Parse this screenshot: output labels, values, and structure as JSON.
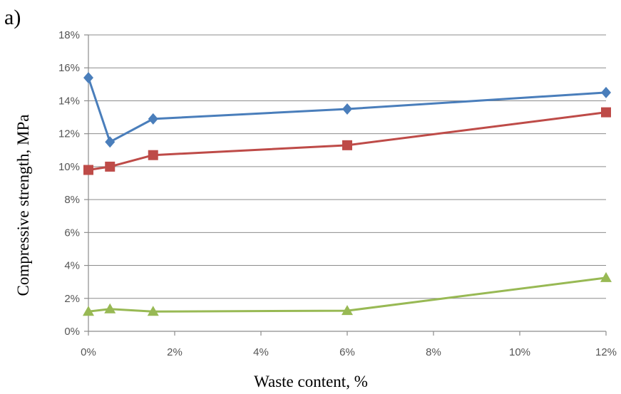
{
  "panel_label": "a)",
  "chart_data": {
    "type": "line",
    "title": "",
    "xlabel": "Waste content, %",
    "ylabel": "Compressive strength, MPa",
    "x": [
      0,
      0.5,
      1.5,
      6,
      12
    ],
    "xlim": [
      0,
      12
    ],
    "ylim": [
      0,
      18
    ],
    "x_ticks": [
      "0%",
      "2%",
      "4%",
      "6%",
      "8%",
      "10%",
      "12%"
    ],
    "y_ticks": [
      "0%",
      "2%",
      "4%",
      "6%",
      "8%",
      "10%",
      "12%",
      "14%",
      "16%",
      "18%"
    ],
    "grid": "horizontal",
    "legend": "none",
    "series": [
      {
        "marker": "diamond",
        "color": "#4a7ebb",
        "values": [
          15.4,
          11.5,
          12.9,
          13.5,
          14.5
        ]
      },
      {
        "marker": "square",
        "color": "#be4b48",
        "values": [
          9.8,
          10.0,
          10.7,
          11.3,
          13.3
        ]
      },
      {
        "marker": "triangle",
        "color": "#98b954",
        "values": [
          1.2,
          1.35,
          1.2,
          1.25,
          3.25
        ]
      }
    ]
  }
}
